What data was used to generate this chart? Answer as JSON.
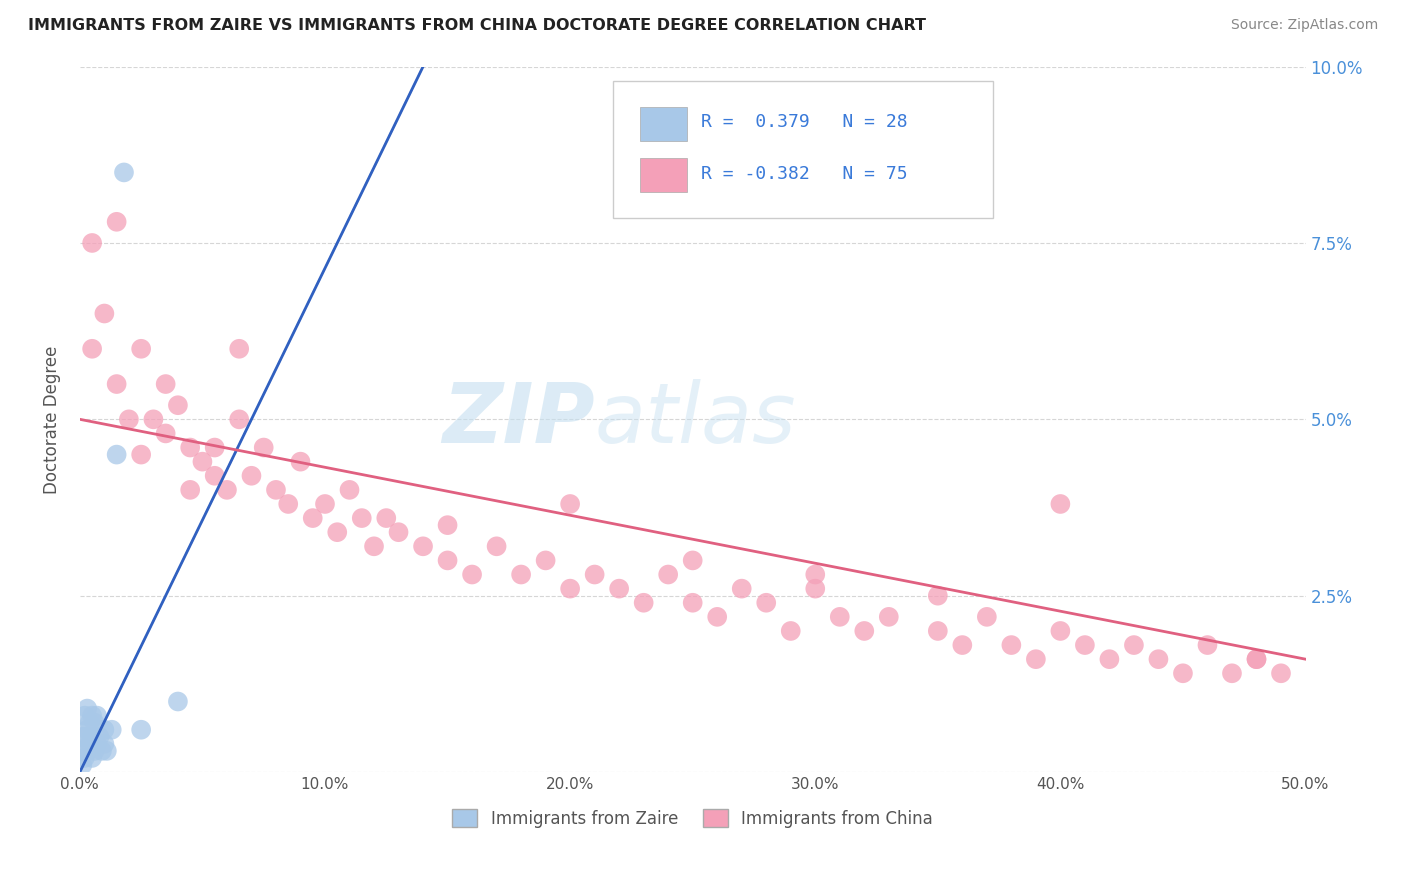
{
  "title": "IMMIGRANTS FROM ZAIRE VS IMMIGRANTS FROM CHINA DOCTORATE DEGREE CORRELATION CHART",
  "source": "Source: ZipAtlas.com",
  "ylabel": "Doctorate Degree",
  "xlim": [
    0,
    0.5
  ],
  "ylim": [
    0,
    0.1
  ],
  "zaire_color": "#a8c8e8",
  "china_color": "#f4a0b8",
  "zaire_line_color": "#3060c0",
  "china_line_color": "#e06080",
  "R_zaire": 0.379,
  "N_zaire": 28,
  "R_china": -0.382,
  "N_china": 75,
  "background_color": "#ffffff",
  "zaire_x": [
    0.001,
    0.001,
    0.001,
    0.002,
    0.002,
    0.002,
    0.003,
    0.003,
    0.003,
    0.004,
    0.004,
    0.005,
    0.005,
    0.005,
    0.006,
    0.006,
    0.007,
    0.007,
    0.008,
    0.009,
    0.01,
    0.01,
    0.011,
    0.013,
    0.015,
    0.018,
    0.025,
    0.04
  ],
  "zaire_y": [
    0.001,
    0.003,
    0.005,
    0.002,
    0.005,
    0.008,
    0.003,
    0.006,
    0.009,
    0.004,
    0.007,
    0.002,
    0.005,
    0.008,
    0.003,
    0.007,
    0.004,
    0.008,
    0.005,
    0.003,
    0.004,
    0.006,
    0.003,
    0.006,
    0.045,
    0.085,
    0.006,
    0.01
  ],
  "china_x": [
    0.005,
    0.01,
    0.015,
    0.02,
    0.025,
    0.03,
    0.035,
    0.04,
    0.045,
    0.05,
    0.055,
    0.06,
    0.065,
    0.07,
    0.075,
    0.08,
    0.085,
    0.09,
    0.095,
    0.1,
    0.105,
    0.11,
    0.115,
    0.12,
    0.125,
    0.13,
    0.14,
    0.15,
    0.16,
    0.17,
    0.18,
    0.19,
    0.2,
    0.21,
    0.22,
    0.23,
    0.24,
    0.25,
    0.26,
    0.27,
    0.28,
    0.29,
    0.3,
    0.31,
    0.32,
    0.33,
    0.35,
    0.36,
    0.37,
    0.38,
    0.39,
    0.4,
    0.41,
    0.42,
    0.43,
    0.44,
    0.45,
    0.46,
    0.47,
    0.48,
    0.49,
    0.005,
    0.015,
    0.025,
    0.035,
    0.045,
    0.055,
    0.065,
    0.15,
    0.2,
    0.25,
    0.3,
    0.35,
    0.4,
    0.48
  ],
  "china_y": [
    0.06,
    0.065,
    0.055,
    0.05,
    0.06,
    0.05,
    0.048,
    0.052,
    0.046,
    0.044,
    0.042,
    0.04,
    0.05,
    0.042,
    0.046,
    0.04,
    0.038,
    0.044,
    0.036,
    0.038,
    0.034,
    0.04,
    0.036,
    0.032,
    0.036,
    0.034,
    0.032,
    0.03,
    0.028,
    0.032,
    0.028,
    0.03,
    0.026,
    0.028,
    0.026,
    0.024,
    0.028,
    0.024,
    0.022,
    0.026,
    0.024,
    0.02,
    0.026,
    0.022,
    0.02,
    0.022,
    0.02,
    0.018,
    0.022,
    0.018,
    0.016,
    0.02,
    0.018,
    0.016,
    0.018,
    0.016,
    0.014,
    0.018,
    0.014,
    0.016,
    0.014,
    0.075,
    0.078,
    0.045,
    0.055,
    0.04,
    0.046,
    0.06,
    0.035,
    0.038,
    0.03,
    0.028,
    0.025,
    0.038,
    0.016
  ],
  "zaire_trend_x": [
    0.0,
    0.14
  ],
  "zaire_trend_y": [
    0.0,
    0.1
  ],
  "china_trend_x0": 0.0,
  "china_trend_x1": 0.5,
  "china_trend_y0": 0.05,
  "china_trend_y1": 0.016
}
